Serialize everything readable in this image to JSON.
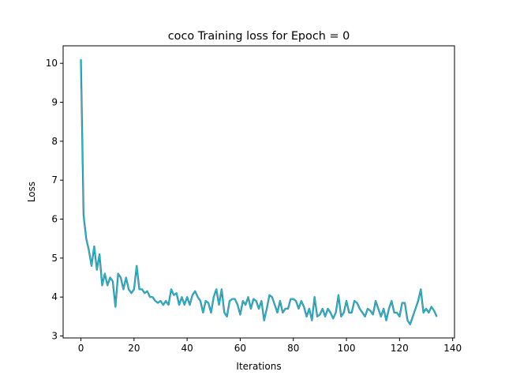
{
  "chart_data": {
    "type": "line",
    "title": "coco Training loss for Epoch = 0",
    "xlabel": "Iterations",
    "ylabel": "Loss",
    "xlim": [
      -6.7,
      140.7
    ],
    "ylim": [
      2.95,
      10.45
    ],
    "xticks": [
      0,
      20,
      40,
      60,
      80,
      100,
      120,
      140
    ],
    "yticks": [
      3,
      4,
      5,
      6,
      7,
      8,
      9,
      10
    ],
    "xtick_labels": [
      "0",
      "20",
      "40",
      "60",
      "80",
      "100",
      "120",
      "140"
    ],
    "ytick_labels": [
      "3",
      "4",
      "5",
      "6",
      "7",
      "8",
      "9",
      "10"
    ],
    "grid": false,
    "legend": false,
    "line_color": "#17becf",
    "under_color": "#4c4c6a",
    "x": [
      0,
      1,
      2,
      3,
      4,
      5,
      6,
      7,
      8,
      9,
      10,
      11,
      12,
      13,
      14,
      15,
      16,
      17,
      18,
      19,
      20,
      21,
      22,
      23,
      24,
      25,
      26,
      27,
      28,
      29,
      30,
      31,
      32,
      33,
      34,
      35,
      36,
      37,
      38,
      39,
      40,
      41,
      42,
      43,
      44,
      45,
      46,
      47,
      48,
      49,
      50,
      51,
      52,
      53,
      54,
      55,
      56,
      57,
      58,
      59,
      60,
      61,
      62,
      63,
      64,
      65,
      66,
      67,
      68,
      69,
      70,
      71,
      72,
      73,
      74,
      75,
      76,
      77,
      78,
      79,
      80,
      81,
      82,
      83,
      84,
      85,
      86,
      87,
      88,
      89,
      90,
      91,
      92,
      93,
      94,
      95,
      96,
      97,
      98,
      99,
      100,
      101,
      102,
      103,
      104,
      105,
      106,
      107,
      108,
      109,
      110,
      111,
      112,
      113,
      114,
      115,
      116,
      117,
      118,
      119,
      120,
      121,
      122,
      123,
      124,
      125,
      126,
      127,
      128,
      129,
      130,
      131,
      132,
      133,
      134
    ],
    "y": [
      10.1,
      6.1,
      5.5,
      5.2,
      4.8,
      5.3,
      4.7,
      5.1,
      4.3,
      4.6,
      4.3,
      4.5,
      4.4,
      3.75,
      4.6,
      4.5,
      4.2,
      4.5,
      4.2,
      4.1,
      4.2,
      4.8,
      4.2,
      4.2,
      4.1,
      4.15,
      4.0,
      4.0,
      3.9,
      3.85,
      3.9,
      3.8,
      3.9,
      3.8,
      4.2,
      4.05,
      4.1,
      3.8,
      4.0,
      3.8,
      4.0,
      3.8,
      4.05,
      4.15,
      4.0,
      3.9,
      3.6,
      3.9,
      3.85,
      3.6,
      4.0,
      4.2,
      3.8,
      4.2,
      3.6,
      3.5,
      3.9,
      3.95,
      3.95,
      3.8,
      3.55,
      3.9,
      3.8,
      4.0,
      3.7,
      3.95,
      3.9,
      3.7,
      3.9,
      3.4,
      3.7,
      4.05,
      4.0,
      3.8,
      3.6,
      3.9,
      3.6,
      3.7,
      3.7,
      3.95,
      3.95,
      3.9,
      3.7,
      3.9,
      3.75,
      3.5,
      3.7,
      3.4,
      4.0,
      3.5,
      3.55,
      3.7,
      3.5,
      3.7,
      3.6,
      3.45,
      3.6,
      4.05,
      3.5,
      3.6,
      3.9,
      3.6,
      3.6,
      3.9,
      3.85,
      3.7,
      3.6,
      3.5,
      3.7,
      3.65,
      3.55,
      3.9,
      3.7,
      3.5,
      3.7,
      3.4,
      3.7,
      3.9,
      3.6,
      3.6,
      3.5,
      3.85,
      3.85,
      3.4,
      3.3,
      3.5,
      3.7,
      3.9,
      4.2,
      3.6,
      3.7,
      3.6,
      3.75,
      3.65,
      3.5
    ]
  }
}
